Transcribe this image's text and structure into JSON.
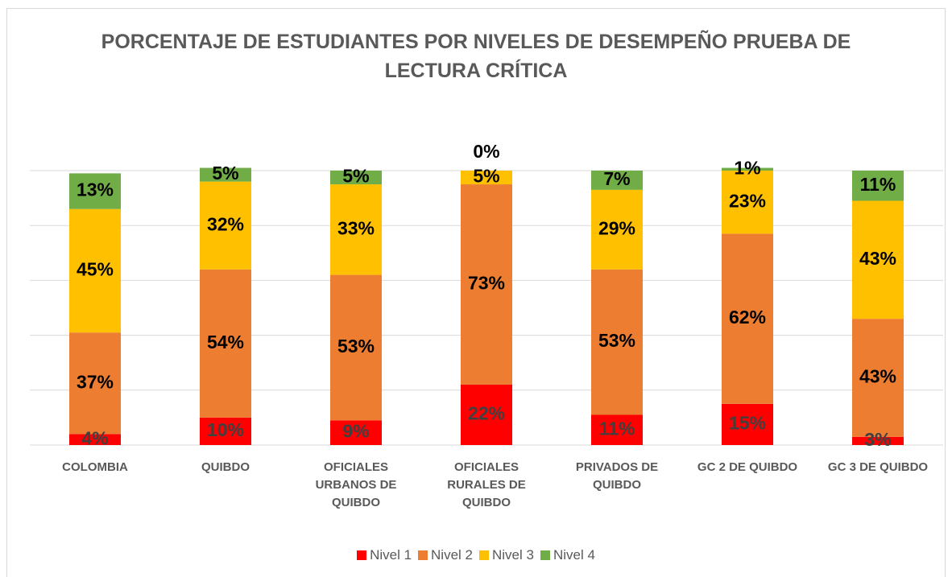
{
  "chart_data": {
    "type": "bar",
    "stacked": true,
    "title": "PORCENTAJE  DE ESTUDIANTES POR NIVELES  DE DESEMPEÑO PRUEBA DE LECTURA CRÍTICA",
    "categories": [
      "COLOMBIA",
      "QUIBDO",
      "OFICIALES URBANOS DE QUIBDO",
      "OFICIALES RURALES DE QUIBDO",
      "PRIVADOS DE QUIBDO",
      "GC 2 DE QUIBDO",
      "GC 3 DE QUIBDO"
    ],
    "series": [
      {
        "name": "Nivel 1",
        "color": "#ff0000",
        "values": [
          4,
          10,
          9,
          22,
          11,
          15,
          3
        ],
        "value_labels": [
          "4%",
          "10%",
          "9%",
          "22%",
          "11%",
          "15%",
          "3%"
        ]
      },
      {
        "name": "Nivel 2",
        "color": "#ed7d31",
        "values": [
          37,
          54,
          53,
          73,
          53,
          62,
          43
        ],
        "value_labels": [
          "37%",
          "54%",
          "53%",
          "73%",
          "53%",
          "62%",
          "43%"
        ]
      },
      {
        "name": "Nivel 3",
        "color": "#ffc000",
        "values": [
          45,
          32,
          33,
          5,
          29,
          23,
          43
        ],
        "value_labels": [
          "45%",
          "32%",
          "33%",
          "5%",
          "29%",
          "23%",
          "43%"
        ]
      },
      {
        "name": "Nivel 4",
        "color": "#70ad47",
        "values": [
          13,
          5,
          5,
          0,
          7,
          1,
          11
        ],
        "value_labels": [
          "13%",
          "5%",
          "5%",
          "0%",
          "7%",
          "1%",
          "11%"
        ]
      }
    ],
    "ylim": [
      0,
      100
    ],
    "yticks": [
      0,
      20,
      40,
      60,
      80,
      100
    ],
    "grid": true,
    "legend": "bottom"
  }
}
